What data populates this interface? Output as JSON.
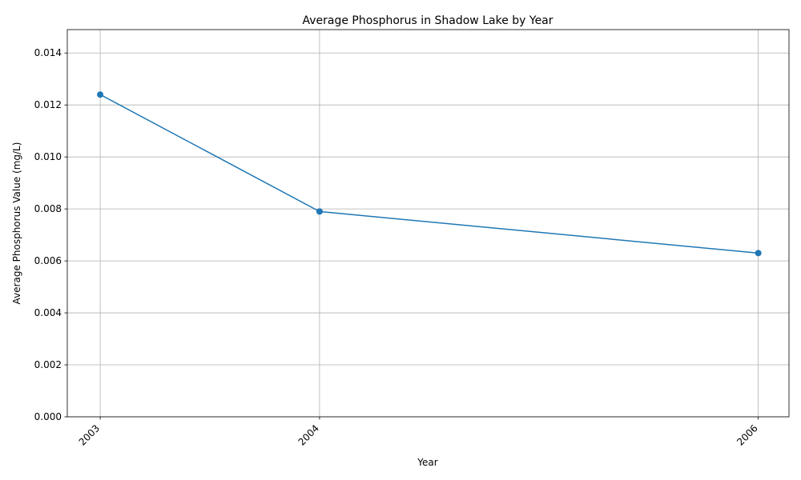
{
  "chart_data": {
    "type": "line",
    "title": "Average Phosphorus in Shadow Lake by Year",
    "xlabel": "Year",
    "ylabel": "Average Phosphorus Value (mg/L)",
    "x": [
      2003,
      2004,
      2006
    ],
    "x_tick_labels": [
      "2003",
      "2004",
      "2006"
    ],
    "xlim": [
      2002.85,
      2006.14
    ],
    "ylim": [
      0,
      0.0149
    ],
    "y_ticks": [
      0,
      0.002,
      0.004,
      0.006,
      0.008,
      0.01,
      0.012,
      0.014
    ],
    "y_tick_labels": [
      "0.000",
      "0.002",
      "0.004",
      "0.006",
      "0.008",
      "0.010",
      "0.012",
      "0.014"
    ],
    "grid": true,
    "series": [
      {
        "values": [
          0.0124,
          0.0079,
          0.0063
        ],
        "color": "#1f77b4",
        "marker": "circle"
      }
    ]
  }
}
